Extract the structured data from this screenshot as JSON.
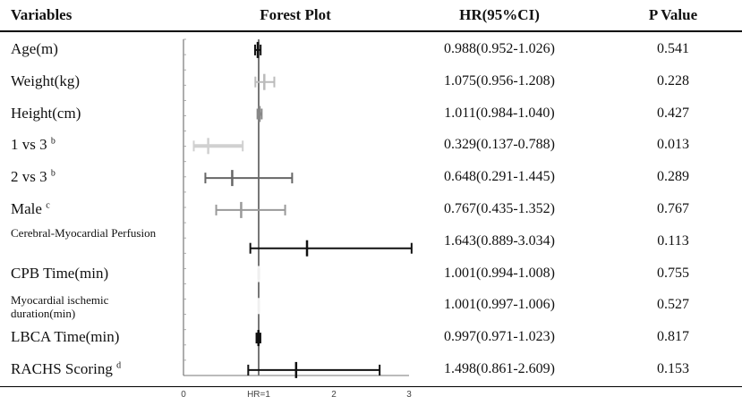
{
  "headers": {
    "variables": "Variables",
    "forest_plot": "Forest Plot",
    "hr": "HR(95%CI)",
    "pvalue": "P Value"
  },
  "rows": [
    {
      "label": "Age(m)",
      "sup": "",
      "hr_text": "0.988(0.952-1.026)",
      "p": "0.541"
    },
    {
      "label": "Weight(kg)",
      "sup": "",
      "hr_text": "1.075(0.956-1.208)",
      "p": "0.228"
    },
    {
      "label": "Height(cm)",
      "sup": "",
      "hr_text": "1.011(0.984-1.040)",
      "p": "0.427"
    },
    {
      "label": "1 vs 3",
      "sup": "b",
      "hr_text": "0.329(0.137-0.788)",
      "p": "0.013"
    },
    {
      "label": "2 vs 3",
      "sup": "b",
      "hr_text": "0.648(0.291-1.445)",
      "p": "0.289"
    },
    {
      "label": "Male",
      "sup": "c",
      "hr_text": "0.767(0.435-1.352)",
      "p": "0.767"
    },
    {
      "label": "Cerebral-Myocardial Perfusion",
      "sup": "",
      "hr_text": "1.643(0.889-3.034)",
      "p": "0.113"
    },
    {
      "label": "CPB Time(min)",
      "sup": "",
      "hr_text": "1.001(0.994-1.008)",
      "p": "0.755"
    },
    {
      "label": "Myocardial ischemic",
      "label2": "duration(min)",
      "sup": "",
      "hr_text": "1.001(0.997-1.006)",
      "p": "0.527"
    },
    {
      "label": "LBCA Time(min)",
      "sup": "",
      "hr_text": "0.997(0.971-1.023)",
      "p": "0.817"
    },
    {
      "label": "RACHS Scoring",
      "sup": "d",
      "hr_text": "1.498(0.861-2.609)",
      "p": "0.153"
    }
  ],
  "chart_data": {
    "type": "forest",
    "xlim": [
      0,
      3
    ],
    "x_ticks": [
      "0",
      "HR=1",
      "2",
      "3"
    ],
    "reference_line": 1,
    "series": [
      {
        "label": "Age(m)",
        "hr": 0.988,
        "lower": 0.952,
        "upper": 1.026,
        "color": "#111111"
      },
      {
        "label": "Weight(kg)",
        "hr": 1.075,
        "lower": 0.956,
        "upper": 1.208,
        "color": "#bbbbbb"
      },
      {
        "label": "Height(cm)",
        "hr": 1.011,
        "lower": 0.984,
        "upper": 1.04,
        "color": "#888888"
      },
      {
        "label": "1 vs 3",
        "hr": 0.329,
        "lower": 0.137,
        "upper": 0.788,
        "color": "#d0d0d0"
      },
      {
        "label": "2 vs 3",
        "hr": 0.648,
        "lower": 0.291,
        "upper": 1.445,
        "color": "#666666"
      },
      {
        "label": "Male",
        "hr": 0.767,
        "lower": 0.435,
        "upper": 1.352,
        "color": "#999999"
      },
      {
        "label": "Cerebral-Myocardial Perfusion",
        "hr": 1.643,
        "lower": 0.889,
        "upper": 3.034,
        "color": "#111111"
      },
      {
        "label": "CPB Time(min)",
        "hr": 1.001,
        "lower": 0.994,
        "upper": 1.008,
        "color": "#f0f0f0"
      },
      {
        "label": "Myocardial ischemic duration(min)",
        "hr": 1.001,
        "lower": 0.997,
        "upper": 1.006,
        "color": "#f0f0f0"
      },
      {
        "label": "LBCA Time(min)",
        "hr": 0.997,
        "lower": 0.971,
        "upper": 1.023,
        "color": "#111111"
      },
      {
        "label": "RACHS Scoring",
        "hr": 1.498,
        "lower": 0.861,
        "upper": 2.609,
        "color": "#111111"
      }
    ]
  }
}
